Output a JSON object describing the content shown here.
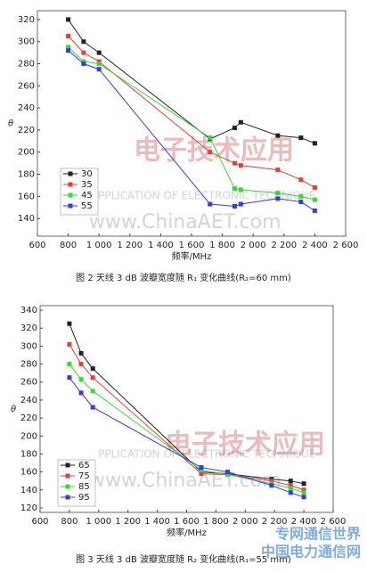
{
  "chart_data": [
    {
      "type": "line",
      "caption": "图 2  天线 3 dB 波瓣宽度随 R₁ 变化曲线(R₂=60 mm)",
      "xlabel": "频率/MHz",
      "ylabel": "θ",
      "x": [
        800,
        900,
        1000,
        1720,
        1880,
        1920,
        2160,
        2310,
        2400
      ],
      "xlim": [
        600,
        2600
      ],
      "xticks": [
        600,
        800,
        {
          "value": 1000,
          "label": "1 000"
        },
        {
          "value": 1200,
          "label": "1 200"
        },
        {
          "value": 1400,
          "label": "1 400"
        },
        {
          "value": 1600,
          "label": "1 600"
        },
        {
          "value": 1800,
          "label": "1 800"
        },
        {
          "value": 2000,
          "label": "2 000"
        },
        {
          "value": 2200,
          "label": "2 200"
        },
        {
          "value": 2400,
          "label": "2 400"
        },
        {
          "value": 2600,
          "label": "2 600"
        }
      ],
      "ylim": [
        124,
        328
      ],
      "yticks": [
        140,
        160,
        180,
        200,
        220,
        240,
        260,
        280,
        300,
        320
      ],
      "series": [
        {
          "name": "30",
          "color": "#222222",
          "values": [
            320,
            300,
            290,
            212,
            222,
            227,
            215,
            213,
            208
          ]
        },
        {
          "name": "35",
          "color": "#f03838",
          "values": [
            305,
            290,
            282,
            200,
            190,
            188,
            184,
            175,
            168
          ]
        },
        {
          "name": "45",
          "color": "#30dd30",
          "values": [
            295,
            282,
            280,
            213,
            167,
            166,
            163,
            160,
            157
          ]
        },
        {
          "name": "55",
          "color": "#3838f0",
          "values": [
            292,
            280,
            275,
            153,
            151,
            153,
            158,
            155,
            147
          ]
        }
      ]
    },
    {
      "type": "line",
      "caption": "图 3  天线 3 dB 波瓣宽度随 R₂ 变化曲线(R₁=55 mm)",
      "xlabel": "频率/MHz",
      "ylabel": "θ",
      "x": [
        800,
        880,
        960,
        1700,
        1880,
        2180,
        2310,
        2400
      ],
      "xlim": [
        600,
        2600
      ],
      "xticks": [
        600,
        800,
        {
          "value": 1000,
          "label": "1 000"
        },
        {
          "value": 1200,
          "label": "1 200"
        },
        {
          "value": 1400,
          "label": "1 400"
        },
        {
          "value": 1600,
          "label": "1 600"
        },
        {
          "value": 1800,
          "label": "1 800"
        },
        {
          "value": 2000,
          "label": "2 000"
        },
        {
          "value": 2200,
          "label": "2 200"
        },
        {
          "value": 2400,
          "label": "2 400"
        },
        {
          "value": 2600,
          "label": "2 600"
        }
      ],
      "ylim": [
        115,
        345
      ],
      "yticks": [
        120,
        140,
        160,
        180,
        200,
        220,
        240,
        260,
        280,
        300,
        320,
        340
      ],
      "series": [
        {
          "name": "65",
          "color": "#222222",
          "values": [
            325,
            292,
            275,
            160,
            158,
            152,
            150,
            147
          ]
        },
        {
          "name": "75",
          "color": "#f03838",
          "values": [
            302,
            280,
            265,
            158,
            157,
            150,
            145,
            140
          ]
        },
        {
          "name": "85",
          "color": "#30dd30",
          "values": [
            280,
            263,
            250,
            162,
            157,
            147,
            142,
            137
          ]
        },
        {
          "name": "95",
          "color": "#3838f0",
          "values": [
            265,
            248,
            232,
            165,
            160,
            145,
            137,
            132
          ]
        }
      ]
    }
  ],
  "watermark": {
    "logo": "电子技术应用",
    "line1": "PPLICATION OF ELECTRONIC TECHNIQUE",
    "line2": "www.ChinaAET.com"
  },
  "corner": {
    "line1": "专网通信世界",
    "line2": "中国电力通信网"
  }
}
